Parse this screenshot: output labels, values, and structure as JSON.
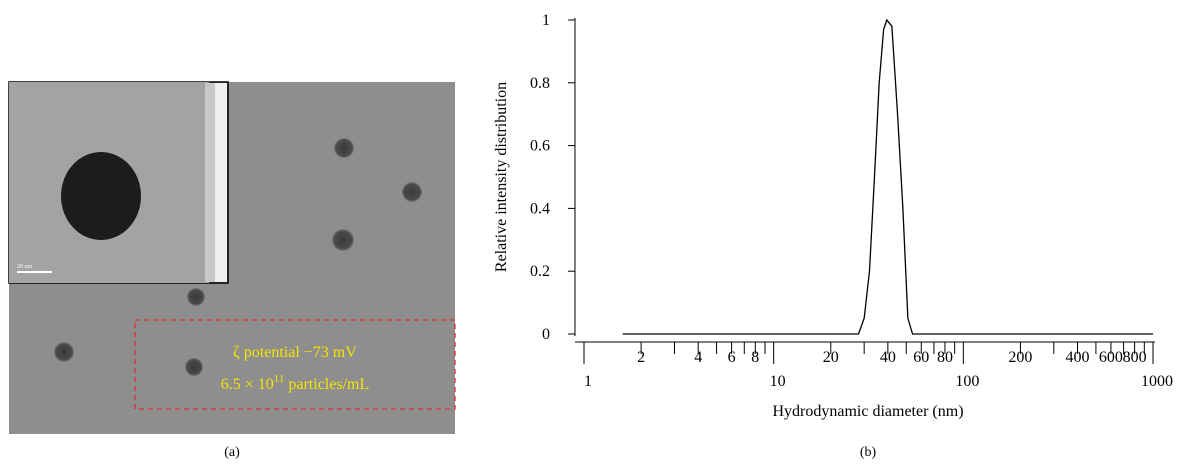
{
  "image_panel": {
    "label": "(a)",
    "scale_bar": "20 nm",
    "annotation": {
      "line1": "ζ potential −73 mV",
      "line2_base": "6.5 × 10",
      "line2_exponent": "11",
      "line2_rest": "particles/mL"
    }
  },
  "chart_data": {
    "type": "line",
    "panel_label": "(b)",
    "x_label": "Hydrodynamic diameter (nm)",
    "y_label": "Relative intensity distribution",
    "xscale": "log",
    "xlim": [
      1,
      1000
    ],
    "ylim": [
      0,
      1
    ],
    "xticks": [
      1,
      2,
      4,
      6,
      8,
      10,
      20,
      40,
      60,
      80,
      100,
      200,
      400,
      600,
      800,
      1000
    ],
    "x_minor_ticks": [
      3,
      5,
      7,
      9,
      30,
      50,
      70,
      90,
      300,
      500,
      700,
      900
    ],
    "yticks": [
      0,
      0.2,
      0.4,
      0.6,
      0.8,
      1
    ],
    "x": [
      1.6,
      28,
      30,
      32,
      34,
      36,
      38,
      39.5,
      42,
      45,
      48,
      51,
      54,
      1000
    ],
    "series": [
      {
        "color": "#000000",
        "values": [
          0,
          0,
          0.05,
          0.2,
          0.5,
          0.8,
          0.97,
          1,
          0.98,
          0.7,
          0.4,
          0.05,
          0,
          0
        ]
      }
    ]
  }
}
